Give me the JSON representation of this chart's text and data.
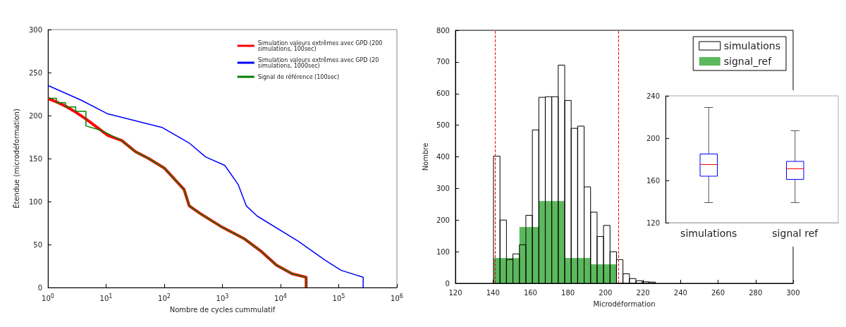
{
  "chart_data": [
    {
      "type": "line",
      "xlabel": "Nombre de cycles cummulatif",
      "ylabel": "Étendue (microdéformation)",
      "log": "x",
      "xlim": [
        1,
        1000000
      ],
      "xticks": [
        {
          "value": 1,
          "label": "10$^{0}$"
        },
        {
          "value": 10,
          "label": "10$^{1}$"
        },
        {
          "value": 100,
          "label": "10$^{2}$"
        },
        {
          "value": 1000,
          "label": "10$^{3}$"
        },
        {
          "value": 10000,
          "label": "10$^{4}$"
        },
        {
          "value": 100000,
          "label": "10$^{5}$"
        },
        {
          "value": 1000000,
          "label": "10$^{6}$"
        }
      ],
      "ylim": [
        0,
        300
      ],
      "yticks": [
        0,
        50,
        100,
        150,
        200,
        250,
        300
      ],
      "grid": false,
      "legend": "top right",
      "marker": "none",
      "line_style": "solid",
      "series": [
        {
          "name": "Simulation valeurs extrêmes avec GPD (200 simulations, 100sec)",
          "color": "#ff0000",
          "x": [
            1,
            1.5,
            2,
            3,
            4.5,
            10.7,
            18.6,
            32,
            54,
            100,
            219,
            269,
            417,
            1000,
            2340,
            4470,
            8500,
            15800,
            27500,
            27500
          ],
          "values": [
            220,
            215,
            211,
            204,
            196,
            177,
            171,
            158,
            150,
            139,
            114,
            95,
            86,
            70,
            57,
            43,
            26,
            16,
            12,
            0
          ]
        },
        {
          "name": "Simulation valeurs extrêmes avec GPD (20 simulations, 1000sec)",
          "color": "#0000ff",
          "x": [
            1,
            3.7,
            10.7,
            93,
            269,
            513,
            1100,
            1860,
            2570,
            3980,
            20000,
            57500,
            110000,
            263000,
            263000
          ],
          "values": [
            235,
            218,
            202,
            186,
            168,
            152,
            142,
            120,
            95,
            83,
            54,
            32,
            20,
            12,
            0
          ]
        },
        {
          "name": "Signal de référence (100sec)",
          "color": "#008000",
          "x": [
            1,
            1.4,
            1.4,
            2,
            2,
            3,
            3,
            4.5,
            4.5,
            8,
            10,
            18.6,
            32,
            54,
            100,
            219,
            269,
            417,
            1000,
            2340,
            4470,
            8500,
            15800,
            27500,
            27500
          ],
          "values": [
            220,
            220,
            215,
            215,
            210,
            210,
            205,
            205,
            188,
            183,
            180,
            171,
            158,
            150,
            139,
            114,
            95,
            86,
            70,
            57,
            43,
            26,
            16,
            12,
            0
          ]
        }
      ]
    },
    {
      "type": "histogram",
      "xlabel": "Microdéformation",
      "ylabel": "Nombre",
      "xlim": [
        120,
        300
      ],
      "xticks": [
        120,
        140,
        160,
        180,
        200,
        220,
        240,
        260,
        280,
        300
      ],
      "ylim": [
        0,
        800
      ],
      "yticks": [
        0,
        100,
        200,
        300,
        400,
        500,
        600,
        700,
        800
      ],
      "grid": false,
      "legend": "top right",
      "ref_lines": [
        {
          "axis": "x",
          "value": 141,
          "label": null,
          "color": "#ff0000",
          "line_style": "dashed"
        },
        {
          "axis": "x",
          "value": 207,
          "label": null,
          "color": "#ff0000",
          "line_style": "dashed"
        }
      ],
      "series": [
        {
          "name": "simulations",
          "color": "#000000",
          "values": [
            402,
            200,
            75,
            93,
            122,
            215,
            485,
            588,
            590,
            590,
            690,
            578,
            490,
            497,
            305,
            225,
            148,
            183,
            100,
            75,
            30,
            15,
            8,
            5,
            4
          ]
        },
        {
          "name": "signal_ref",
          "color": "#5cb85c",
          "values": [
            80,
            80,
            80,
            80,
            178,
            178,
            178,
            260,
            260,
            260,
            260,
            80,
            80,
            80,
            80,
            60,
            60,
            60,
            60,
            null,
            null,
            null,
            null,
            null,
            null
          ]
        }
      ],
      "bins": [
        140.3,
        143.75,
        147.2,
        150.65,
        154.1,
        157.55,
        161,
        164.45,
        167.9,
        171.35,
        174.8,
        178.25,
        181.7,
        185.15,
        188.6,
        192.05,
        195.5,
        198.95,
        202.4,
        205.85,
        209.3,
        212.75,
        216.2,
        219.65,
        223.1,
        226.55
      ]
    },
    {
      "type": "box",
      "categories": [
        "simulations",
        "signal ref"
      ],
      "ylim": [
        120,
        240
      ],
      "yticks": [
        120,
        160,
        200,
        240
      ],
      "color": "#0000ff",
      "boxes": [
        {
          "low": 139,
          "q1": 164,
          "median": 175,
          "q3": 185,
          "high": 229
        },
        {
          "low": 139,
          "q1": 161,
          "median": 171,
          "q3": 178,
          "high": 207
        }
      ]
    }
  ]
}
